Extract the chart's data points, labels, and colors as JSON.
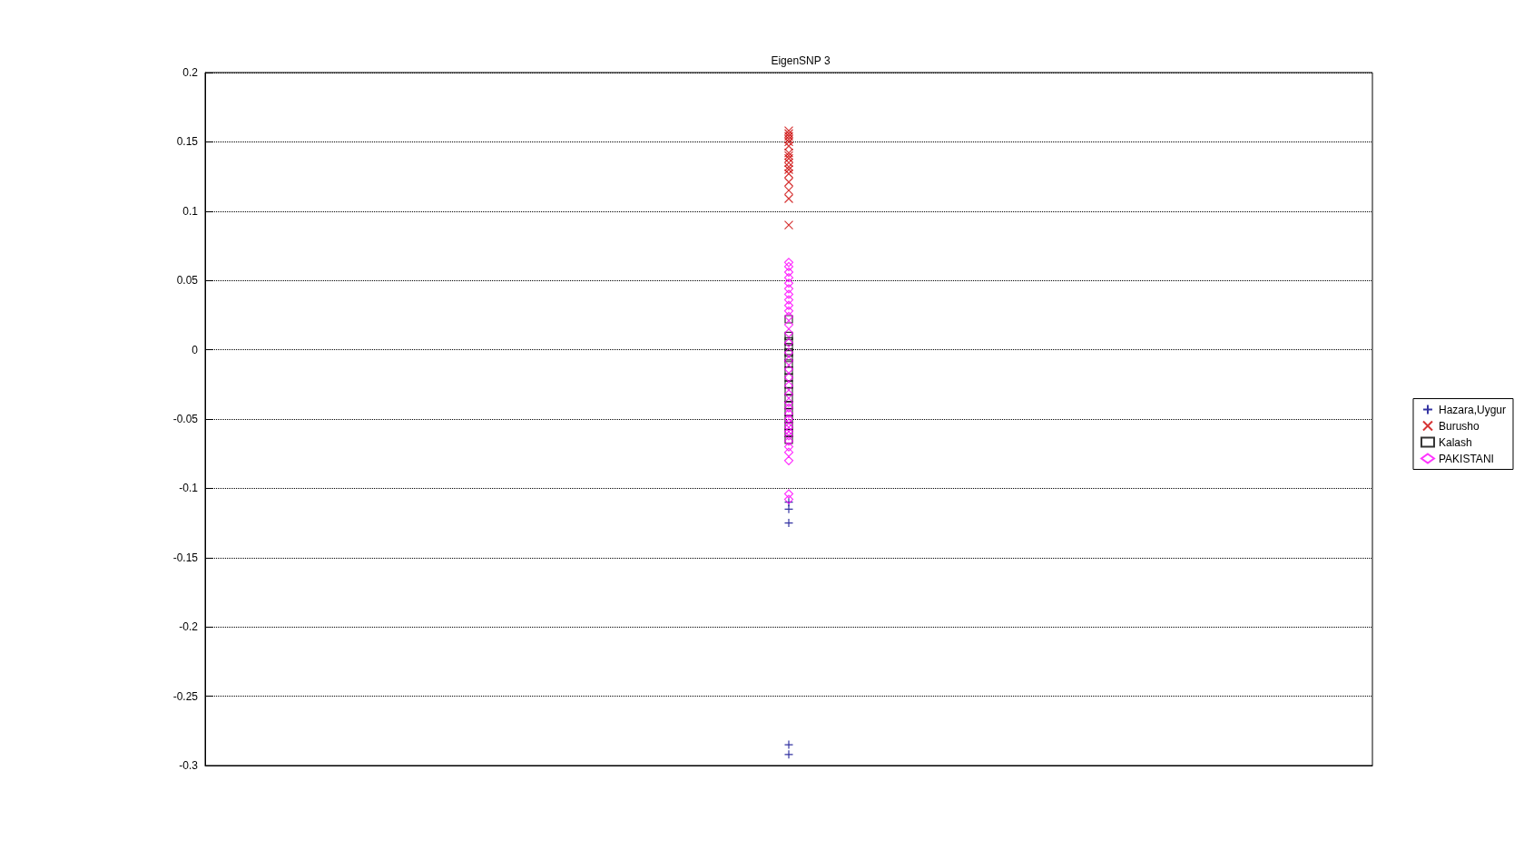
{
  "chart_data": {
    "type": "scatter",
    "title": "EigenSNP 3",
    "categories": [
      null
    ],
    "tick_labels": "y",
    "ylim": [
      -0.3,
      0.2
    ],
    "yticks": [
      -0.3,
      -0.25,
      -0.2,
      -0.15,
      -0.1,
      -0.05,
      0,
      0.05,
      0.1,
      0.15,
      0.2
    ],
    "grid": "y",
    "legend": "right",
    "series": [
      {
        "name": "Hazara,Uygur",
        "color": "#00008b",
        "marker": "plus",
        "x": [
          null,
          null,
          null,
          null,
          null
        ],
        "values": [
          -0.11,
          -0.115,
          -0.125,
          -0.285,
          -0.292
        ]
      },
      {
        "name": "Burusho",
        "color": "#cc0000",
        "marker": "cross",
        "x": [
          null,
          null,
          null,
          null,
          null,
          null,
          null,
          null,
          null,
          null,
          null,
          null,
          null,
          null,
          null,
          null,
          null
        ],
        "values": [
          0.158,
          0.156,
          0.154,
          0.152,
          0.15,
          0.147,
          0.142,
          0.14,
          0.138,
          0.135,
          0.132,
          0.13,
          0.127,
          0.121,
          0.115,
          0.109,
          0.09
        ]
      },
      {
        "name": "Kalash",
        "color": "#000000",
        "marker": "square",
        "x": [
          null,
          null,
          null,
          null,
          null,
          null,
          null,
          null,
          null,
          null,
          null,
          null,
          null,
          null,
          null,
          null,
          null,
          null
        ],
        "values": [
          0.022,
          0.01,
          0.006,
          0.002,
          -0.002,
          -0.006,
          -0.01,
          -0.015,
          -0.02,
          -0.025,
          -0.03,
          -0.035,
          -0.04,
          -0.045,
          -0.05,
          -0.055,
          -0.06,
          -0.065
        ]
      },
      {
        "name": "PAKISTANI",
        "color": "#ff00ff",
        "marker": "diamond",
        "x": [
          null,
          null,
          null,
          null,
          null,
          null,
          null,
          null,
          null,
          null,
          null,
          null,
          null,
          null,
          null,
          null,
          null,
          null,
          null,
          null,
          null,
          null,
          null,
          null,
          null,
          null,
          null,
          null,
          null,
          null,
          null,
          null,
          null,
          null
        ],
        "values": [
          0.063,
          0.06,
          0.056,
          0.052,
          0.048,
          0.044,
          0.04,
          0.036,
          0.032,
          0.028,
          0.024,
          0.018,
          0.012,
          0.005,
          -0.002,
          -0.008,
          -0.014,
          -0.02,
          -0.026,
          -0.032,
          -0.038,
          -0.042,
          -0.046,
          -0.05,
          -0.053,
          -0.056,
          -0.059,
          -0.062,
          -0.066,
          -0.07,
          -0.074,
          -0.08,
          -0.104,
          -0.108
        ]
      }
    ]
  }
}
